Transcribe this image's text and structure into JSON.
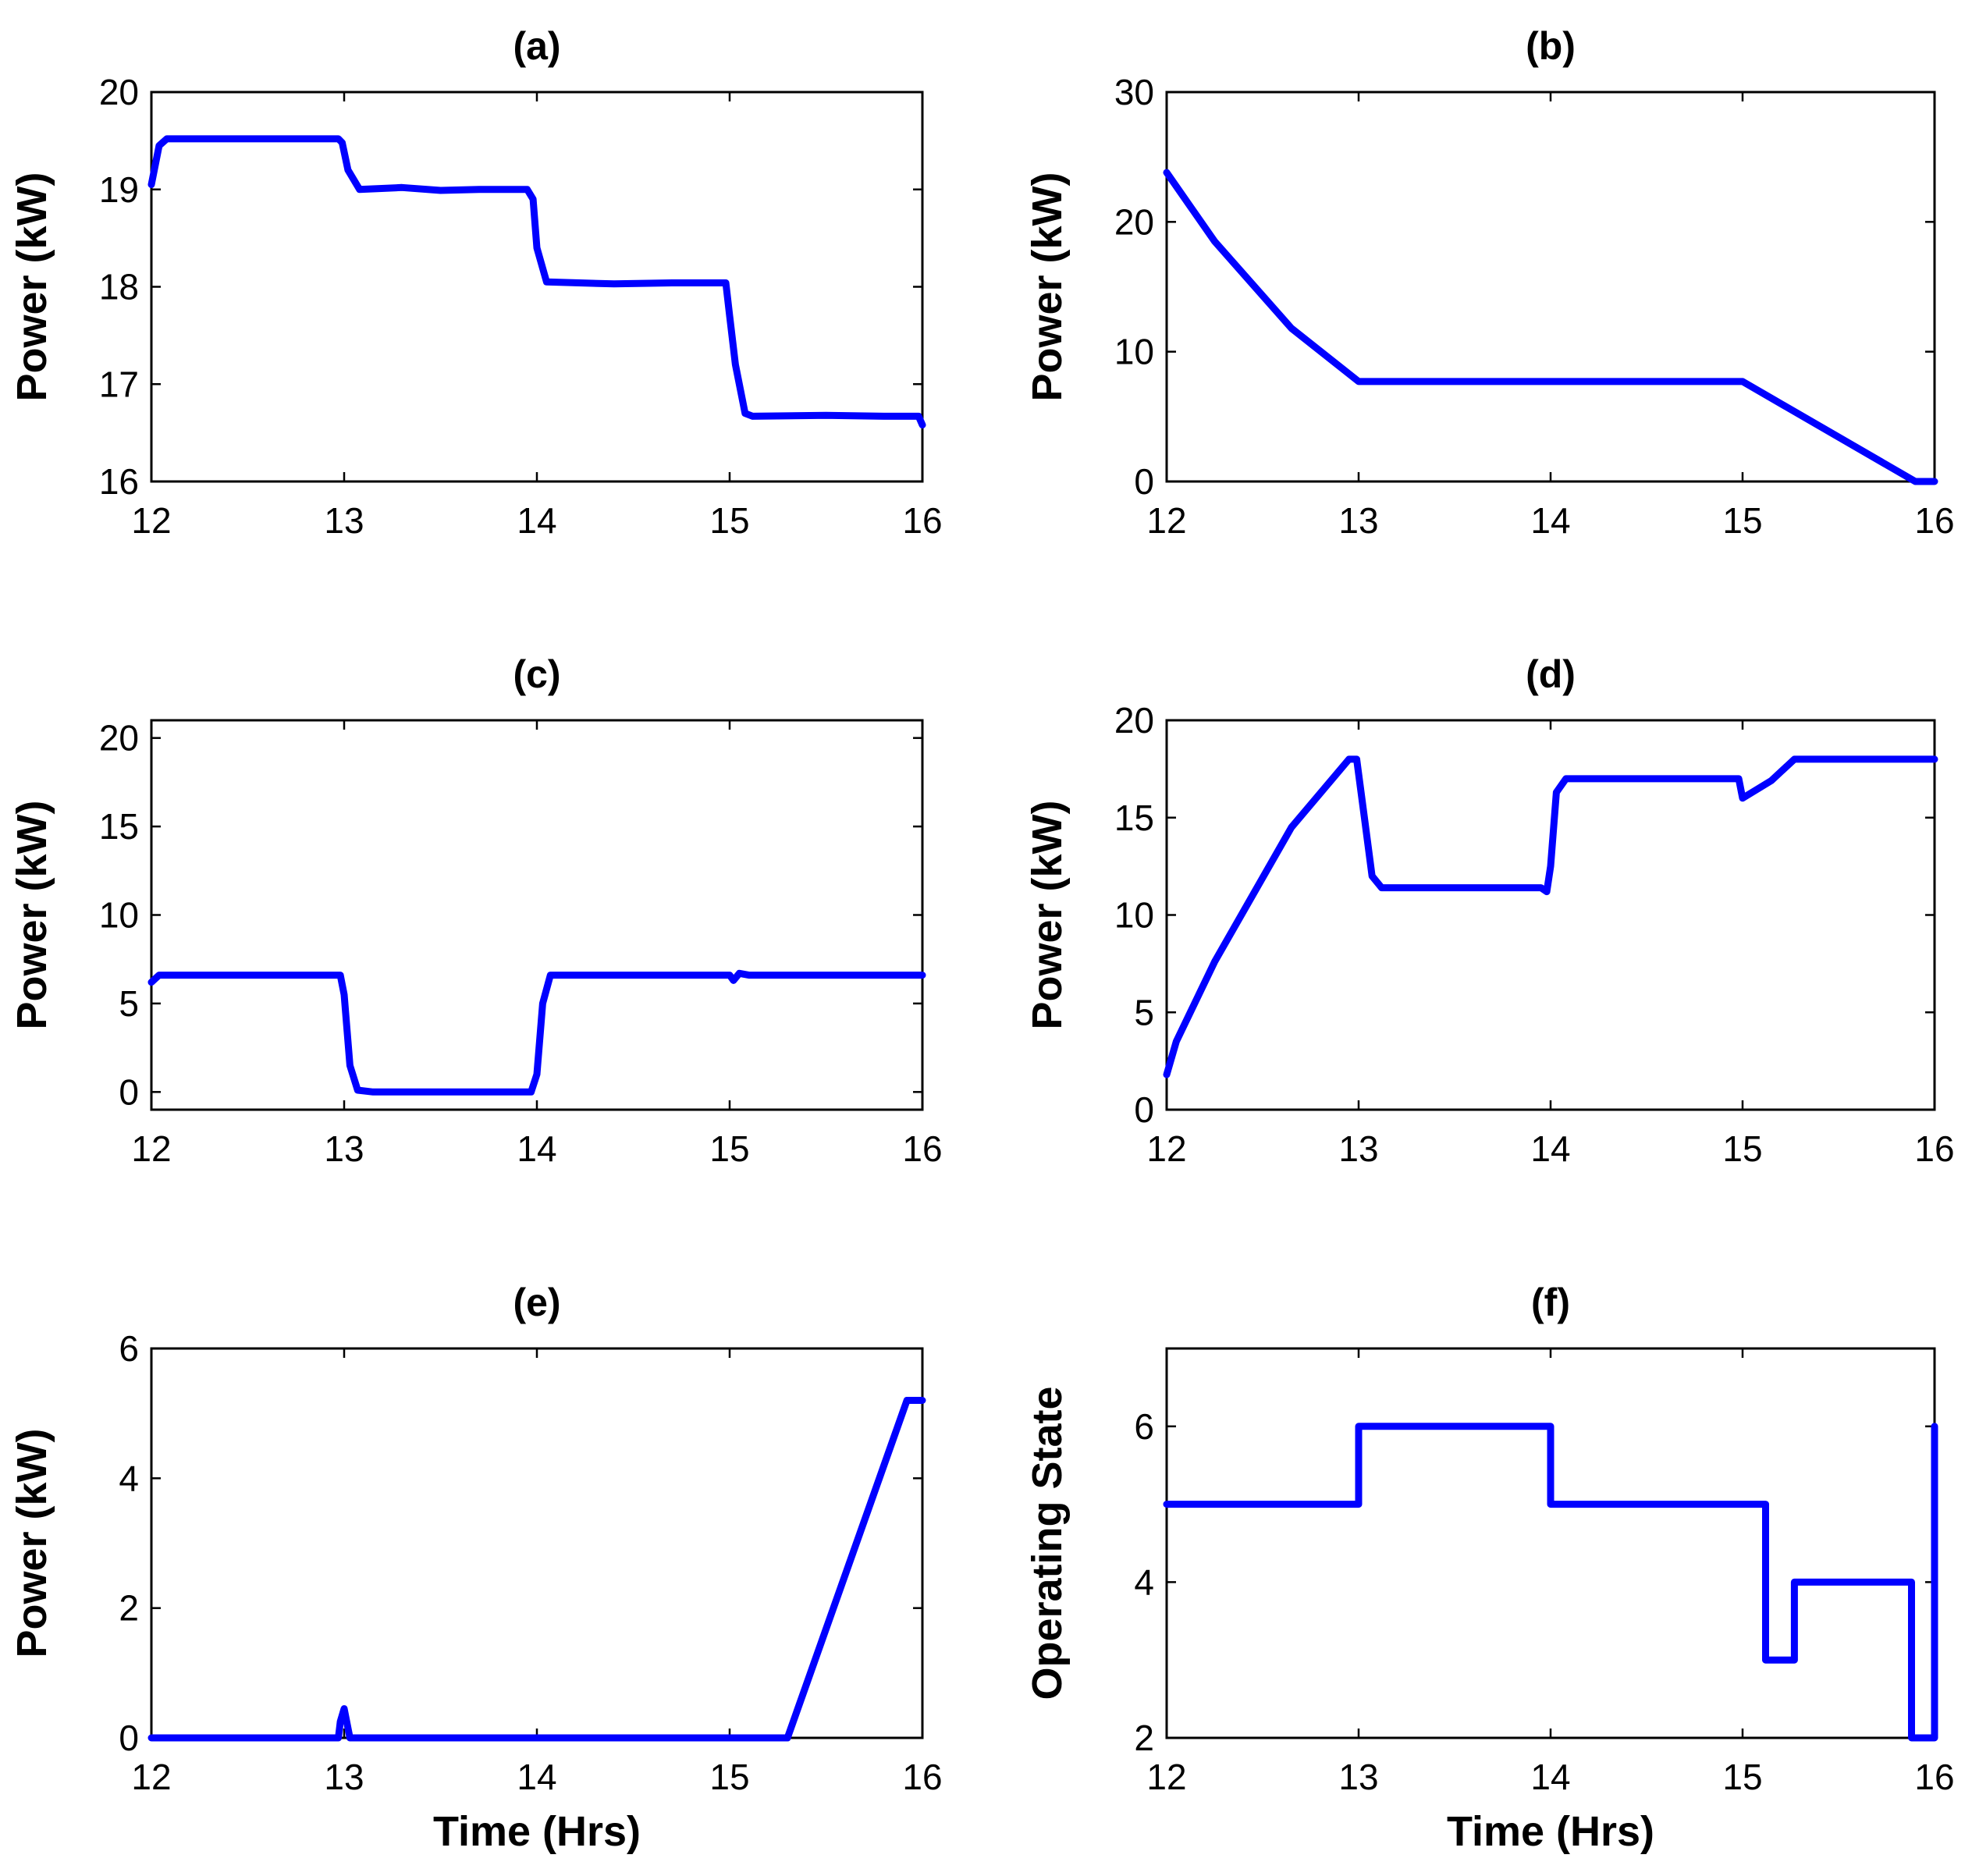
{
  "figure": {
    "line_color": "#0000ff"
  },
  "chart_data": [
    {
      "id": "a",
      "type": "line",
      "title": "(a)",
      "xlabel": "",
      "ylabel": "Power (kW)",
      "xlim": [
        12,
        16
      ],
      "ylim": [
        16,
        20
      ],
      "xticks": [
        12,
        13,
        14,
        15,
        16
      ],
      "yticks": [
        16,
        17,
        18,
        19,
        20
      ],
      "series": [
        {
          "name": "a",
          "points": [
            [
              12.0,
              19.05
            ],
            [
              12.04,
              19.45
            ],
            [
              12.08,
              19.52
            ],
            [
              12.5,
              19.52
            ],
            [
              12.97,
              19.52
            ],
            [
              12.99,
              19.48
            ],
            [
              13.02,
              19.2
            ],
            [
              13.08,
              19.0
            ],
            [
              13.3,
              19.02
            ],
            [
              13.5,
              18.99
            ],
            [
              13.7,
              19.0
            ],
            [
              13.95,
              19.0
            ],
            [
              13.98,
              18.9
            ],
            [
              14.0,
              18.4
            ],
            [
              14.05,
              18.05
            ],
            [
              14.4,
              18.03
            ],
            [
              14.7,
              18.04
            ],
            [
              14.98,
              18.04
            ],
            [
              15.0,
              17.7
            ],
            [
              15.03,
              17.2
            ],
            [
              15.08,
              16.7
            ],
            [
              15.12,
              16.67
            ],
            [
              15.5,
              16.68
            ],
            [
              15.8,
              16.67
            ],
            [
              15.98,
              16.67
            ],
            [
              16.0,
              16.58
            ]
          ]
        }
      ]
    },
    {
      "id": "b",
      "type": "line",
      "title": "(b)",
      "xlabel": "",
      "ylabel": "Power (kW)",
      "xlim": [
        12,
        16
      ],
      "ylim": [
        0,
        30
      ],
      "xticks": [
        12,
        13,
        14,
        15,
        16
      ],
      "yticks": [
        0,
        10,
        20,
        30
      ],
      "series": [
        {
          "name": "b",
          "points": [
            [
              12.0,
              23.8
            ],
            [
              12.25,
              18.5
            ],
            [
              12.65,
              11.8
            ],
            [
              13.0,
              7.7
            ],
            [
              15.0,
              7.7
            ],
            [
              15.9,
              0.0
            ],
            [
              16.0,
              0.0
            ]
          ]
        }
      ]
    },
    {
      "id": "c",
      "type": "line",
      "title": "(c)",
      "xlabel": "",
      "ylabel": "Power (kW)",
      "xlim": [
        12,
        16
      ],
      "ylim": [
        -1,
        21
      ],
      "xticks": [
        12,
        13,
        14,
        15,
        16
      ],
      "yticks": [
        0,
        5,
        10,
        15,
        20
      ],
      "series": [
        {
          "name": "c",
          "points": [
            [
              12.0,
              6.2
            ],
            [
              12.04,
              6.6
            ],
            [
              12.98,
              6.6
            ],
            [
              13.0,
              5.5
            ],
            [
              13.03,
              1.5
            ],
            [
              13.07,
              0.1
            ],
            [
              13.15,
              0.0
            ],
            [
              13.97,
              0.0
            ],
            [
              14.0,
              1.0
            ],
            [
              14.03,
              5.0
            ],
            [
              14.07,
              6.6
            ],
            [
              15.0,
              6.6
            ],
            [
              15.02,
              6.3
            ],
            [
              15.05,
              6.7
            ],
            [
              15.1,
              6.6
            ],
            [
              16.0,
              6.6
            ]
          ]
        }
      ]
    },
    {
      "id": "d",
      "type": "line",
      "title": "(d)",
      "xlabel": "",
      "ylabel": "Power (kW)",
      "xlim": [
        12,
        16
      ],
      "ylim": [
        0,
        20
      ],
      "xticks": [
        12,
        13,
        14,
        15,
        16
      ],
      "yticks": [
        0,
        5,
        10,
        15,
        20
      ],
      "series": [
        {
          "name": "d",
          "points": [
            [
              12.0,
              1.8
            ],
            [
              12.05,
              3.5
            ],
            [
              12.25,
              7.6
            ],
            [
              12.65,
              14.5
            ],
            [
              12.95,
              18.0
            ],
            [
              12.99,
              18.0
            ],
            [
              13.03,
              15.0
            ],
            [
              13.07,
              12.0
            ],
            [
              13.12,
              11.4
            ],
            [
              13.5,
              11.4
            ],
            [
              13.95,
              11.4
            ],
            [
              13.98,
              11.2
            ],
            [
              14.0,
              12.5
            ],
            [
              14.03,
              16.3
            ],
            [
              14.08,
              17.0
            ],
            [
              14.5,
              17.0
            ],
            [
              14.98,
              17.0
            ],
            [
              15.0,
              16.0
            ],
            [
              15.05,
              16.3
            ],
            [
              15.15,
              16.9
            ],
            [
              15.27,
              18.0
            ],
            [
              16.0,
              18.0
            ]
          ]
        }
      ]
    },
    {
      "id": "e",
      "type": "line",
      "title": "(e)",
      "xlabel": "Time (Hrs)",
      "ylabel": "Power (kW)",
      "xlim": [
        12,
        16
      ],
      "ylim": [
        0,
        6
      ],
      "xticks": [
        12,
        13,
        14,
        15,
        16
      ],
      "yticks": [
        0,
        2,
        4,
        6
      ],
      "series": [
        {
          "name": "e",
          "points": [
            [
              12.0,
              0.0
            ],
            [
              12.97,
              0.0
            ],
            [
              12.98,
              0.25
            ],
            [
              13.0,
              0.45
            ],
            [
              13.02,
              0.15
            ],
            [
              13.03,
              0.0
            ],
            [
              15.3,
              0.0
            ],
            [
              15.92,
              5.2
            ],
            [
              16.0,
              5.2
            ]
          ]
        }
      ]
    },
    {
      "id": "f",
      "type": "line",
      "title": "(f)",
      "xlabel": "Time (Hrs)",
      "ylabel": "Operating State",
      "xlim": [
        12,
        16
      ],
      "ylim": [
        2,
        7
      ],
      "xticks": [
        12,
        13,
        14,
        15,
        16
      ],
      "yticks": [
        2,
        4,
        6
      ],
      "series": [
        {
          "name": "f",
          "points": [
            [
              12.0,
              5
            ],
            [
              13.0,
              5
            ],
            [
              13.0,
              6
            ],
            [
              14.0,
              6
            ],
            [
              14.0,
              5
            ],
            [
              15.12,
              5
            ],
            [
              15.12,
              3
            ],
            [
              15.27,
              3
            ],
            [
              15.27,
              4
            ],
            [
              15.88,
              4
            ],
            [
              15.88,
              2
            ],
            [
              16.0,
              2
            ],
            [
              16.0,
              6
            ]
          ]
        }
      ]
    }
  ]
}
